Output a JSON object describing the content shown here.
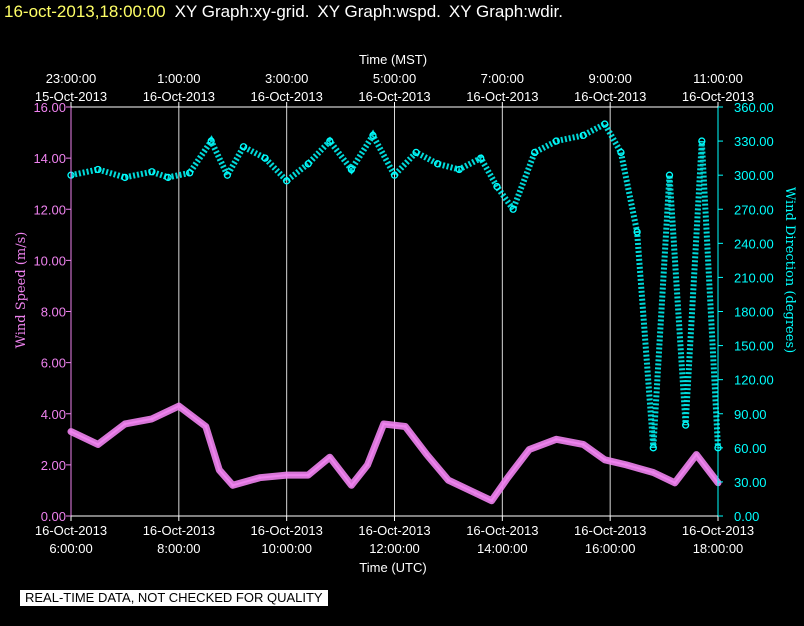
{
  "header": {
    "timestamp": "16-oct-2013,18:00:00",
    "graph_titles": [
      "XY Graph:xy-grid.",
      "XY Graph:wspd.",
      "XY Graph:wdir."
    ]
  },
  "colors": {
    "background": "#000000",
    "timestamp": "#ffff66",
    "grid": "#ffffff",
    "wind_speed": "#ee82ee",
    "wind_direction": "#00ffff"
  },
  "notice": "REAL-TIME DATA, NOT CHECKED FOR QUALITY",
  "chart_data": {
    "type": "line",
    "top_axis_title": "Time (MST)",
    "xlabel": "Time (UTC)",
    "ylabel_left": "Wind Speed (m/s)",
    "ylabel_right": "Wind Direction (degrees)",
    "xlim_utc_hours": [
      6,
      18
    ],
    "ylim_left": [
      0,
      16
    ],
    "ylim_right": [
      0,
      360
    ],
    "grid": "vertical lines every 2 hours",
    "bottom_ticks": [
      {
        "hour": 6,
        "date": "16-Oct-2013",
        "time": "6:00:00"
      },
      {
        "hour": 8,
        "date": "16-Oct-2013",
        "time": "8:00:00"
      },
      {
        "hour": 10,
        "date": "16-Oct-2013",
        "time": "10:00:00"
      },
      {
        "hour": 12,
        "date": "16-Oct-2013",
        "time": "12:00:00"
      },
      {
        "hour": 14,
        "date": "16-Oct-2013",
        "time": "14:00:00"
      },
      {
        "hour": 16,
        "date": "16-Oct-2013",
        "time": "16:00:00"
      },
      {
        "hour": 18,
        "date": "16-Oct-2013",
        "time": "18:00:00"
      }
    ],
    "top_ticks": [
      {
        "hour": 6,
        "time": "23:00:00",
        "date": "15-Oct-2013"
      },
      {
        "hour": 8,
        "time": "1:00:00",
        "date": "16-Oct-2013"
      },
      {
        "hour": 10,
        "time": "3:00:00",
        "date": "16-Oct-2013"
      },
      {
        "hour": 12,
        "time": "5:00:00",
        "date": "16-Oct-2013"
      },
      {
        "hour": 14,
        "time": "7:00:00",
        "date": "16-Oct-2013"
      },
      {
        "hour": 16,
        "time": "9:00:00",
        "date": "16-Oct-2013"
      },
      {
        "hour": 18,
        "time": "11:00:00",
        "date": "16-Oct-2013"
      }
    ],
    "left_ticks": [
      "0.00",
      "2.00",
      "4.00",
      "6.00",
      "8.00",
      "10.00",
      "12.00",
      "14.00",
      "16.00"
    ],
    "right_ticks": [
      "0.00",
      "30.00",
      "60.00",
      "90.00",
      "120.00",
      "150.00",
      "180.00",
      "210.00",
      "240.00",
      "270.00",
      "300.00",
      "330.00",
      "360.00"
    ],
    "series": [
      {
        "key": "wspd",
        "axis": "left",
        "style": "line",
        "x": [
          6.0,
          6.5,
          7.0,
          7.5,
          8.0,
          8.5,
          8.75,
          9.0,
          9.5,
          10.0,
          10.4,
          10.8,
          11.2,
          11.5,
          11.8,
          12.2,
          12.6,
          13.0,
          13.5,
          13.8,
          14.1,
          14.5,
          15.0,
          15.5,
          15.9,
          16.3,
          16.8,
          17.2,
          17.6,
          18.0
        ],
        "values": [
          3.3,
          2.8,
          3.6,
          3.8,
          4.3,
          3.5,
          1.8,
          1.2,
          1.5,
          1.6,
          1.6,
          2.3,
          1.2,
          2.0,
          3.6,
          3.5,
          2.4,
          1.4,
          0.9,
          0.6,
          1.5,
          2.6,
          3.0,
          2.8,
          2.2,
          2.0,
          1.7,
          1.3,
          2.4,
          1.3
        ]
      },
      {
        "key": "wdir",
        "axis": "right",
        "style": "markers",
        "x": [
          6.0,
          6.5,
          7.0,
          7.5,
          7.8,
          8.2,
          8.6,
          8.9,
          9.2,
          9.6,
          10.0,
          10.4,
          10.8,
          11.2,
          11.6,
          12.0,
          12.4,
          12.8,
          13.2,
          13.6,
          13.9,
          14.2,
          14.6,
          15.0,
          15.5,
          15.9,
          16.2,
          16.5,
          16.8,
          17.1,
          17.4,
          17.7,
          18.0
        ],
        "values": [
          300,
          305,
          298,
          303,
          298,
          302,
          330,
          300,
          325,
          315,
          295,
          310,
          330,
          305,
          335,
          300,
          320,
          310,
          305,
          315,
          290,
          270,
          320,
          330,
          335,
          345,
          320,
          250,
          60,
          300,
          80,
          330,
          60
        ]
      }
    ]
  }
}
